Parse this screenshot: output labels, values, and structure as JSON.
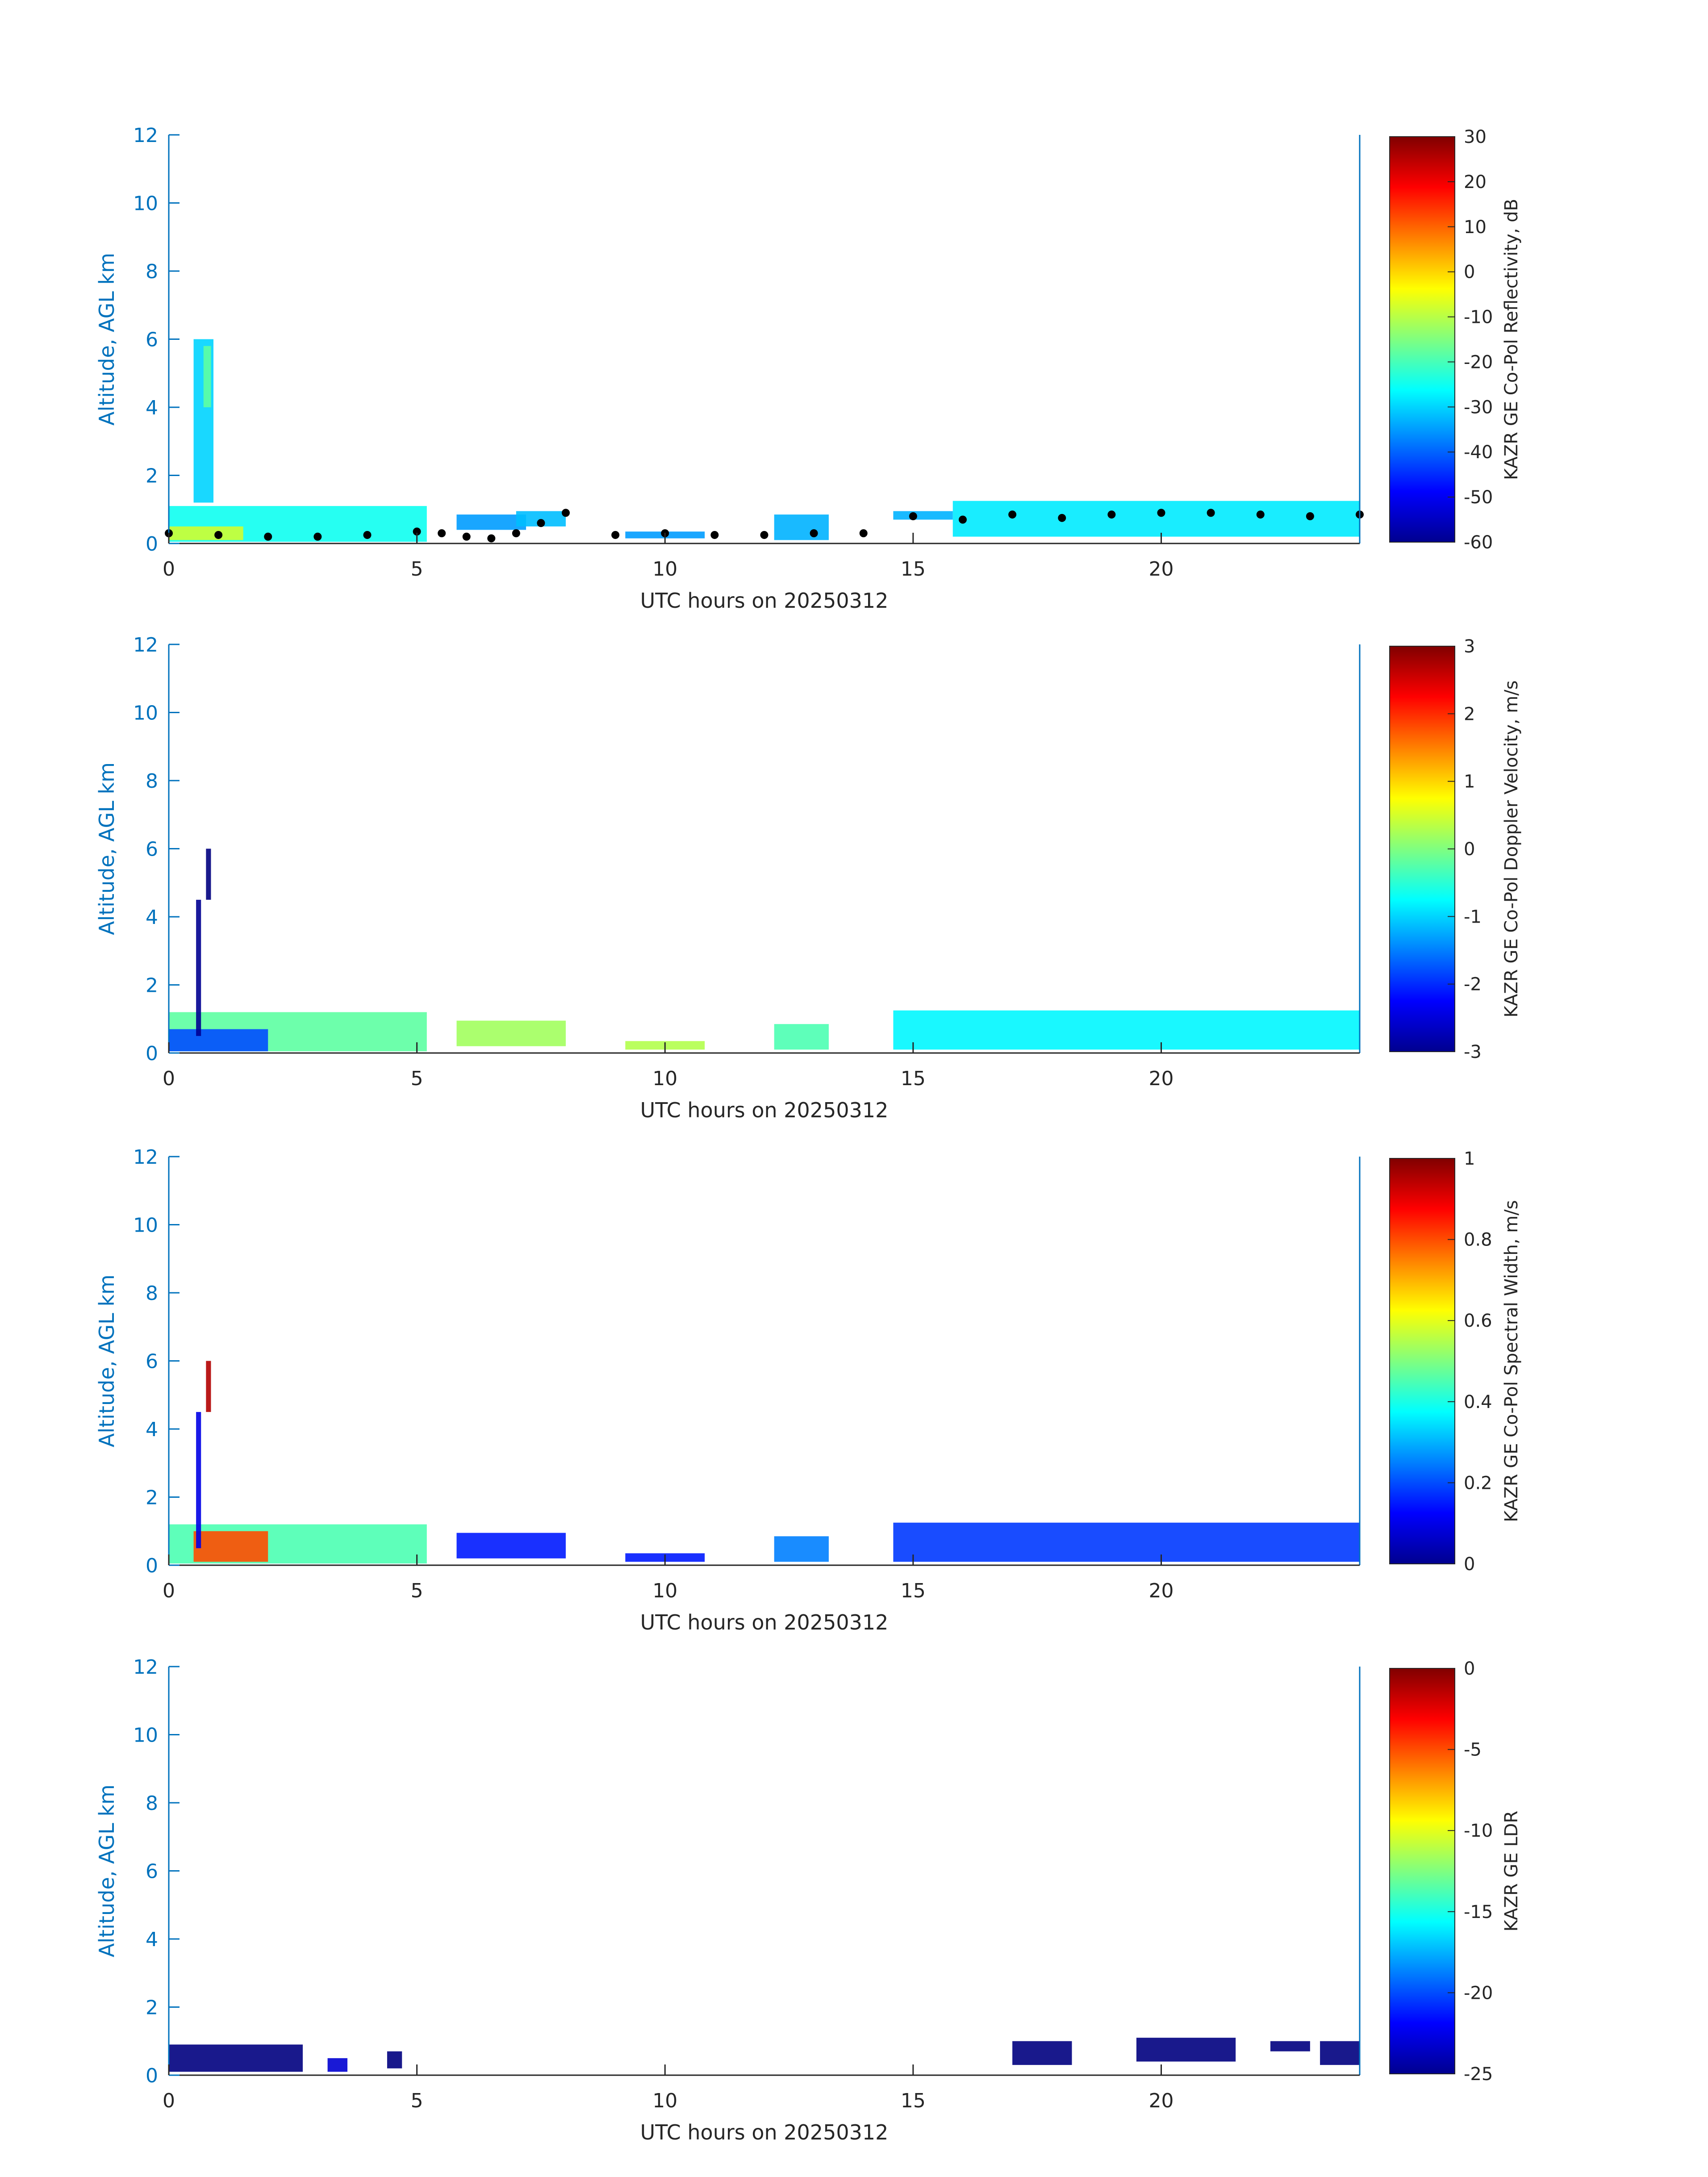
{
  "chart_data": [
    {
      "type": "heatmap",
      "xlabel": "UTC hours on 20250312",
      "ylabel": "Altitude, AGL km",
      "xlim": [
        0,
        24
      ],
      "ylim": [
        0,
        12
      ],
      "x_ticks": [
        "0",
        "5",
        "10",
        "15",
        "20"
      ],
      "y_ticks": [
        "0",
        "2",
        "4",
        "6",
        "8",
        "10",
        "12"
      ],
      "colorbar": {
        "label": "KAZR GE Co-Pol Reflectivity, dB",
        "range": [
          -60,
          30
        ],
        "ticks": [
          "30",
          "20",
          "10",
          "0",
          "-10",
          "-20",
          "-30",
          "-40",
          "-50",
          "-60"
        ],
        "colormap": "jet"
      },
      "regions": [
        {
          "x0": 0.0,
          "x1": 5.2,
          "y0": 0.05,
          "y1": 1.1,
          "value": -25
        },
        {
          "x0": 0.0,
          "x1": 1.5,
          "y0": 0.1,
          "y1": 0.5,
          "value": -8
        },
        {
          "x0": 0.5,
          "x1": 0.9,
          "y0": 1.2,
          "y1": 6.0,
          "value": -30
        },
        {
          "x0": 0.7,
          "x1": 0.85,
          "y0": 4.0,
          "y1": 5.8,
          "value": -18
        },
        {
          "x0": 5.8,
          "x1": 7.2,
          "y0": 0.4,
          "y1": 0.85,
          "value": -35
        },
        {
          "x0": 7.0,
          "x1": 8.0,
          "y0": 0.5,
          "y1": 0.95,
          "value": -32
        },
        {
          "x0": 9.2,
          "x1": 10.8,
          "y0": 0.15,
          "y1": 0.35,
          "value": -35
        },
        {
          "x0": 12.2,
          "x1": 13.3,
          "y0": 0.1,
          "y1": 0.85,
          "value": -33
        },
        {
          "x0": 14.6,
          "x1": 15.8,
          "y0": 0.7,
          "y1": 0.95,
          "value": -33
        },
        {
          "x0": 15.8,
          "x1": 24.0,
          "y0": 0.2,
          "y1": 1.25,
          "value": -28
        }
      ],
      "cloud_base": {
        "name": "",
        "color": "#000000",
        "x": [
          0,
          1,
          2,
          3,
          4,
          5,
          5.5,
          6,
          6.5,
          7,
          7.5,
          8,
          9,
          10,
          11,
          12,
          13,
          14,
          15,
          16,
          17,
          18,
          19,
          20,
          21,
          22,
          23,
          24
        ],
        "y": [
          0.3,
          0.25,
          0.2,
          0.2,
          0.25,
          0.35,
          0.3,
          0.2,
          0.15,
          0.3,
          0.6,
          0.9,
          0.25,
          0.3,
          0.25,
          0.25,
          0.3,
          0.3,
          0.8,
          0.7,
          0.85,
          0.75,
          0.85,
          0.9,
          0.9,
          0.85,
          0.8,
          0.85
        ]
      }
    },
    {
      "type": "heatmap",
      "xlabel": "UTC hours on 20250312",
      "ylabel": "Altitude, AGL km",
      "xlim": [
        0,
        24
      ],
      "ylim": [
        0,
        12
      ],
      "x_ticks": [
        "0",
        "5",
        "10",
        "15",
        "20"
      ],
      "y_ticks": [
        "0",
        "2",
        "4",
        "6",
        "8",
        "10",
        "12"
      ],
      "colorbar": {
        "label": "KAZR GE Co-Pol Doppler Velocity, m/s",
        "range": [
          -3,
          3
        ],
        "ticks": [
          "3",
          "2",
          "1",
          "0",
          "-1",
          "-2",
          "-3"
        ],
        "colormap": "jet"
      },
      "regions": [
        {
          "x0": 0.0,
          "x1": 5.2,
          "y0": 0.05,
          "y1": 1.2,
          "value": -0.2
        },
        {
          "x0": 0.0,
          "x1": 2.0,
          "y0": 0.05,
          "y1": 0.7,
          "value": -1.8
        },
        {
          "x0": 0.55,
          "x1": 0.65,
          "y0": 0.5,
          "y1": 4.5,
          "value": -2.9
        },
        {
          "x0": 0.75,
          "x1": 0.85,
          "y0": 4.5,
          "y1": 6.0,
          "value": -3.0
        },
        {
          "x0": 5.8,
          "x1": 8.0,
          "y0": 0.2,
          "y1": 0.95,
          "value": 0.2
        },
        {
          "x0": 9.2,
          "x1": 10.8,
          "y0": 0.1,
          "y1": 0.35,
          "value": 0.3
        },
        {
          "x0": 12.2,
          "x1": 13.3,
          "y0": 0.1,
          "y1": 0.85,
          "value": -0.3
        },
        {
          "x0": 14.6,
          "x1": 24.0,
          "y0": 0.1,
          "y1": 1.25,
          "value": -0.8
        }
      ]
    },
    {
      "type": "heatmap",
      "xlabel": "UTC hours on 20250312",
      "ylabel": "Altitude, AGL km",
      "xlim": [
        0,
        24
      ],
      "ylim": [
        0,
        12
      ],
      "x_ticks": [
        "0",
        "5",
        "10",
        "15",
        "20"
      ],
      "y_ticks": [
        "0",
        "2",
        "4",
        "6",
        "8",
        "10",
        "12"
      ],
      "colorbar": {
        "label": "KAZR GE Co-Pol Spectral Width, m/s",
        "range": [
          0,
          1
        ],
        "ticks": [
          "1",
          "0.8",
          "0.6",
          "0.4",
          "0.2",
          "0"
        ],
        "colormap": "jet"
      },
      "regions": [
        {
          "x0": 0.0,
          "x1": 5.2,
          "y0": 0.05,
          "y1": 1.2,
          "value": 0.45
        },
        {
          "x0": 0.5,
          "x1": 2.0,
          "y0": 0.1,
          "y1": 1.0,
          "value": 0.8
        },
        {
          "x0": 0.55,
          "x1": 0.65,
          "y0": 0.5,
          "y1": 4.5,
          "value": 0.1
        },
        {
          "x0": 0.75,
          "x1": 0.85,
          "y0": 4.5,
          "y1": 6.0,
          "value": 0.95
        },
        {
          "x0": 5.8,
          "x1": 8.0,
          "y0": 0.2,
          "y1": 0.95,
          "value": 0.15
        },
        {
          "x0": 9.2,
          "x1": 10.8,
          "y0": 0.1,
          "y1": 0.35,
          "value": 0.15
        },
        {
          "x0": 12.2,
          "x1": 13.3,
          "y0": 0.1,
          "y1": 0.85,
          "value": 0.25
        },
        {
          "x0": 14.6,
          "x1": 24.0,
          "y0": 0.1,
          "y1": 1.25,
          "value": 0.18
        }
      ]
    },
    {
      "type": "heatmap",
      "xlabel": "UTC hours on 20250312",
      "ylabel": "Altitude, AGL km",
      "xlim": [
        0,
        24
      ],
      "ylim": [
        0,
        12
      ],
      "x_ticks": [
        "0",
        "5",
        "10",
        "15",
        "20"
      ],
      "y_ticks": [
        "0",
        "2",
        "4",
        "6",
        "8",
        "10",
        "12"
      ],
      "colorbar": {
        "label": "KAZR GE LDR",
        "range": [
          -25,
          0
        ],
        "ticks": [
          "0",
          "-5",
          "-10",
          "-15",
          "-20",
          "-25"
        ],
        "colormap": "jet"
      },
      "regions": [
        {
          "x0": 0.0,
          "x1": 2.7,
          "y0": 0.1,
          "y1": 0.9,
          "value": -25
        },
        {
          "x0": 3.2,
          "x1": 3.6,
          "y0": 0.1,
          "y1": 0.5,
          "value": -23
        },
        {
          "x0": 4.4,
          "x1": 4.7,
          "y0": 0.2,
          "y1": 0.7,
          "value": -25
        },
        {
          "x0": 17.0,
          "x1": 18.2,
          "y0": 0.3,
          "y1": 1.0,
          "value": -25
        },
        {
          "x0": 19.5,
          "x1": 21.5,
          "y0": 0.4,
          "y1": 1.1,
          "value": -25
        },
        {
          "x0": 22.2,
          "x1": 23.0,
          "y0": 0.7,
          "y1": 1.0,
          "value": -25
        },
        {
          "x0": 23.2,
          "x1": 24.0,
          "y0": 0.3,
          "y1": 1.0,
          "value": -25
        }
      ]
    }
  ]
}
